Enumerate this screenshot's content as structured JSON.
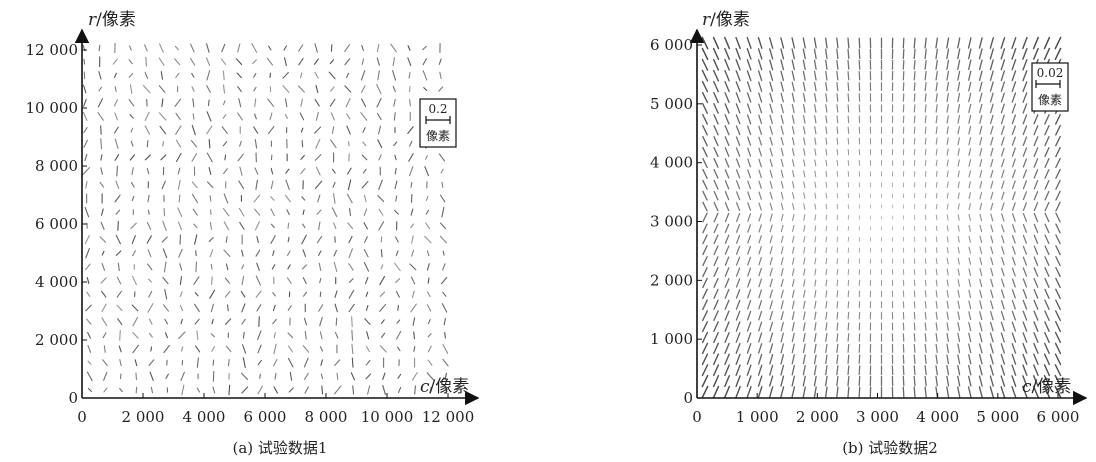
{
  "chart_data": [
    {
      "type": "vector-field",
      "title": "",
      "caption": "(a) 试验数据1",
      "xlabel": {
        "var": "c",
        "unit": "/像素"
      },
      "ylabel": {
        "var": "r",
        "unit": "/像素"
      },
      "xlim": [
        0,
        12000
      ],
      "ylim": [
        0,
        12000
      ],
      "xticks": [
        0,
        2000,
        4000,
        6000,
        8000,
        10000,
        12000
      ],
      "xtick_labels": [
        "0",
        "2 000",
        "4 000",
        "6 000",
        "8 000",
        "10 000",
        "12 000"
      ],
      "yticks": [
        0,
        2000,
        4000,
        6000,
        8000,
        10000,
        12000
      ],
      "ytick_labels": [
        "0",
        "2 000",
        "4 000",
        "6 000",
        "8 000",
        "10 000",
        "12 000"
      ],
      "scale_legend": {
        "value": "0.2",
        "unit": "像素"
      },
      "grid": false,
      "vector_color": "#444444"
    },
    {
      "type": "vector-field",
      "title": "",
      "caption": "(b) 试验数据2",
      "xlabel": {
        "var": "c",
        "unit": "/像素"
      },
      "ylabel": {
        "var": "r",
        "unit": "/像素"
      },
      "xlim": [
        0,
        6000
      ],
      "ylim": [
        0,
        6000
      ],
      "xticks": [
        0,
        1000,
        2000,
        3000,
        4000,
        5000,
        6000
      ],
      "xtick_labels": [
        "0",
        "1 000",
        "2 000",
        "3 000",
        "4 000",
        "5 000",
        "6 000"
      ],
      "yticks": [
        0,
        1000,
        2000,
        3000,
        4000,
        5000,
        6000
      ],
      "ytick_labels": [
        "0",
        "1 000",
        "2 000",
        "3 000",
        "4 000",
        "5 000",
        "6 000"
      ],
      "scale_legend": {
        "value": "0.02",
        "unit": "像素"
      },
      "grid": false,
      "vector_color": "#555555"
    }
  ]
}
